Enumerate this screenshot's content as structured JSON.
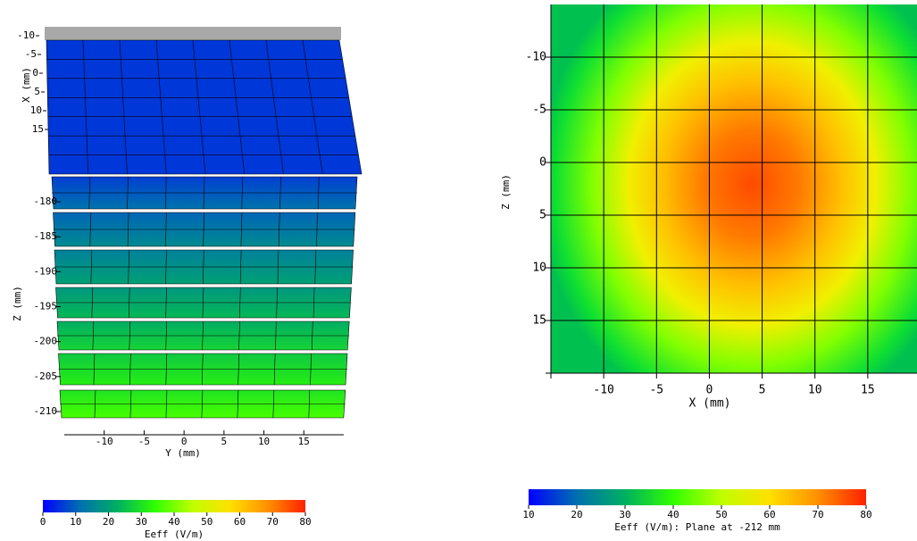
{
  "colormap": [
    "#0000ff",
    "#0070b0",
    "#00b060",
    "#30ff00",
    "#c0ff00",
    "#ffe000",
    "#ff9000",
    "#ff2000"
  ],
  "chart_data": [
    {
      "type": "stack3d",
      "x_label": "X (mm)",
      "xlim": [
        -10,
        15
      ],
      "xticks": [
        -10,
        -5,
        0,
        5,
        10,
        15
      ],
      "z_label": "Z (mm)",
      "zlim": [
        -210,
        -180
      ],
      "zticks": [
        -180,
        -185,
        -190,
        -195,
        -200,
        -205,
        -210
      ],
      "y_label": "Y (mm)",
      "ylim": [
        -15,
        20
      ],
      "yticks": [
        -10,
        -5,
        0,
        5,
        10,
        15
      ],
      "colorbar": {
        "label": "Eeff (V/m)",
        "lim": [
          0,
          80
        ],
        "ticks": [
          0,
          10,
          20,
          30,
          40,
          50,
          60,
          70,
          80
        ]
      }
    },
    {
      "type": "heatmap",
      "x_label": "X (mm)",
      "xlim": [
        -15,
        20
      ],
      "xticks": [
        -10,
        -5,
        0,
        5,
        10,
        15
      ],
      "y_label": "Z (mm)",
      "ylim": [
        -15,
        20
      ],
      "yticks": [
        -10,
        -5,
        0,
        5,
        10,
        15
      ],
      "grid": true,
      "colorbar": {
        "label": "Eeff (V/m): Plane at -212 mm",
        "lim": [
          10,
          80
        ],
        "ticks": [
          10,
          20,
          30,
          40,
          50,
          60,
          70,
          80
        ]
      }
    }
  ]
}
